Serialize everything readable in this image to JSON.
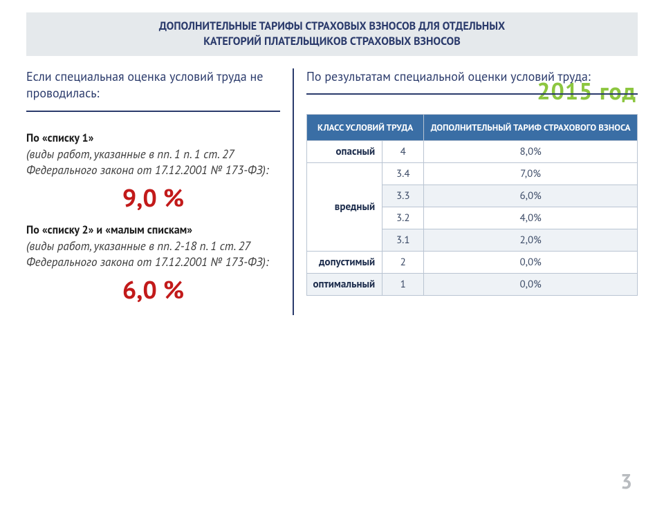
{
  "title_line1": "ДОПОЛНИТЕЛЬНЫЕ ТАРИФЫ СТРАХОВЫХ ВЗНОСОВ ДЛЯ ОТДЕЛЬНЫХ",
  "title_line2": "КАТЕГОРИЙ ПЛАТЕЛЬЩИКОВ СТРАХОВЫХ ВЗНОСОВ",
  "year_badge": "2015 год",
  "left": {
    "header": "Если специальная оценка условий труда не проводилась:",
    "block1": {
      "title": "По «списку 1»",
      "desc": "(виды работ, указанные в пп. 1 п. 1 ст. 27 Федерального закона  от 17.12.2001 № 173-ФЗ):",
      "percent": "9,0 %"
    },
    "block2": {
      "title": "По «списку 2» и «малым спискам»",
      "desc": "(виды работ, указанные в пп. 2-18 п. 1 ст. 27 Федерального закона от 17.12.2001 № 173-ФЗ):",
      "percent": "6,0 %"
    }
  },
  "right": {
    "header": "По результатам специальной оценки условий труда:",
    "table": {
      "col1": "КЛАСС УСЛОВИЙ ТРУДА",
      "col2": "ДОПОЛНИТЕЛЬНЫЙ ТАРИФ СТРАХОВОГО ВЗНОСА",
      "rows": [
        {
          "class_label": "опасный",
          "sub": "4",
          "rate": "8,0%",
          "rowspan": 1,
          "alt": false
        },
        {
          "class_label": "вредный",
          "sub": "3.4",
          "rate": "7,0%",
          "rowspan": 4,
          "alt": false
        },
        {
          "class_label": "",
          "sub": "3.3",
          "rate": "6,0%",
          "rowspan": 0,
          "alt": true
        },
        {
          "class_label": "",
          "sub": "3.2",
          "rate": "4,0%",
          "rowspan": 0,
          "alt": false
        },
        {
          "class_label": "",
          "sub": "3.1",
          "rate": "2,0%",
          "rowspan": 0,
          "alt": true
        },
        {
          "class_label": "допустимый",
          "sub": "2",
          "rate": "0,0%",
          "rowspan": 1,
          "alt": false
        },
        {
          "class_label": "оптимальный",
          "sub": "1",
          "rate": "0,0%",
          "rowspan": 1,
          "alt": true
        }
      ]
    }
  },
  "page_number": "3",
  "colors": {
    "title_bg": "#e5e9ec",
    "title_text": "#2a3a6b",
    "accent_green": "#8cc63f",
    "accent_red": "#c21a1a",
    "table_header_bg": "#3a6ea5",
    "table_border": "#b9c4d2",
    "alt_row": "#eef2f6",
    "page_num": "#b9bcc0"
  }
}
